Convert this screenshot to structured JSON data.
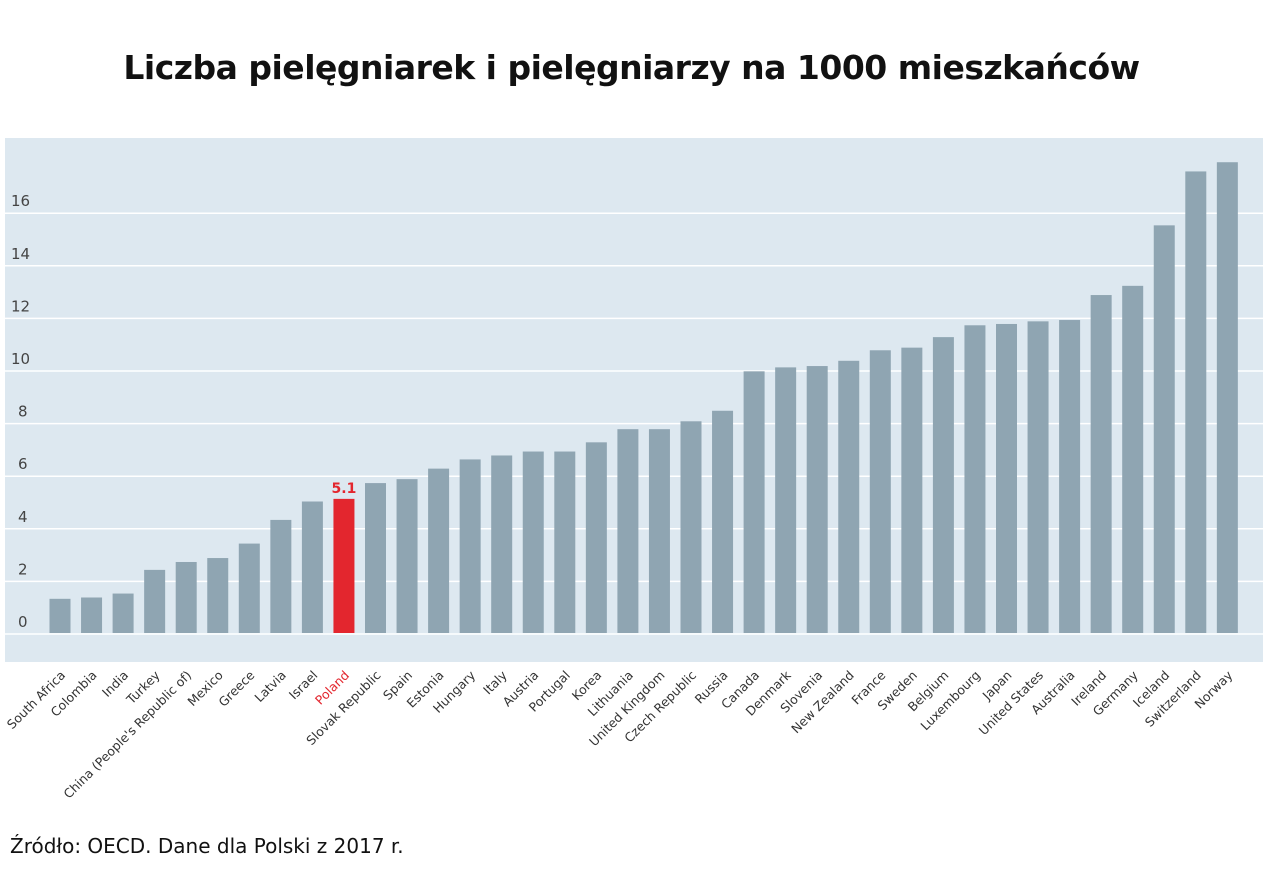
{
  "chart_data": {
    "type": "bar",
    "title": "Liczba pielęgniarek i pielęgniarzy na 1000 mieszkańców",
    "xlabel": "",
    "ylabel": "",
    "ylim": [
      0,
      18
    ],
    "yticks": [
      0,
      2,
      4,
      6,
      8,
      10,
      12,
      14,
      16
    ],
    "grid": true,
    "categories": [
      "South Africa",
      "Colombia",
      "India",
      "Turkey",
      "China (People's Republic of)",
      "Mexico",
      "Greece",
      "Latvia",
      "Israel",
      "Poland",
      "Slovak Republic",
      "Spain",
      "Estonia",
      "Hungary",
      "Italy",
      "Austria",
      "Portugal",
      "Korea",
      "Lithuania",
      "United Kingdom",
      "Czech Republic",
      "Russia",
      "Canada",
      "Denmark",
      "Slovenia",
      "New Zealand",
      "France",
      "Sweden",
      "Belgium",
      "Luxembourg",
      "Japan",
      "United States",
      "Australia",
      "Ireland",
      "Germany",
      "Iceland",
      "Switzerland",
      "Norway"
    ],
    "values": [
      1.3,
      1.35,
      1.5,
      2.4,
      2.7,
      2.85,
      3.4,
      4.3,
      5.0,
      5.1,
      5.7,
      5.85,
      6.25,
      6.6,
      6.75,
      6.9,
      6.9,
      7.25,
      7.75,
      7.75,
      8.05,
      8.45,
      9.95,
      10.1,
      10.15,
      10.35,
      10.75,
      10.85,
      11.25,
      11.7,
      11.75,
      11.85,
      11.9,
      12.85,
      13.2,
      15.5,
      17.55,
      17.9
    ],
    "highlight": {
      "category": "Poland",
      "label": "5.1",
      "color": "#e3262e"
    },
    "bar_color": "#8fa5b2",
    "background_color": "#dde8f0"
  },
  "footer": {
    "source": "Źródło: OECD. Dane dla Polski z 2017 r."
  }
}
